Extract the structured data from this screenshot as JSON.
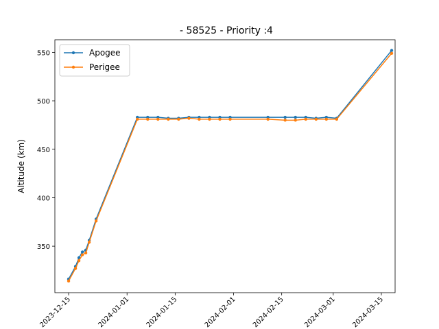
{
  "chart_data": {
    "type": "line",
    "title": "- 58525 - Priority :4",
    "xlabel": "",
    "ylabel": "Altitude (km)",
    "xlim": [
      "2023-12-11",
      "2024-03-19"
    ],
    "ylim": [
      302,
      563
    ],
    "x_ticks": [
      "2023-12-15",
      "2024-01-01",
      "2024-01-15",
      "2024-02-01",
      "2024-02-15",
      "2024-03-01",
      "2024-03-15"
    ],
    "y_ticks": [
      350,
      400,
      450,
      500,
      550
    ],
    "grid": false,
    "legend_position": "top-left",
    "series": [
      {
        "name": "Apogee",
        "color": "#1f77b4",
        "x": [
          "2023-12-15",
          "2023-12-17",
          "2023-12-18",
          "2023-12-19",
          "2023-12-20",
          "2023-12-21",
          "2023-12-23",
          "2024-01-04",
          "2024-01-07",
          "2024-01-10",
          "2024-01-13",
          "2024-01-16",
          "2024-01-19",
          "2024-01-22",
          "2024-01-25",
          "2024-01-28",
          "2024-01-31",
          "2024-02-11",
          "2024-02-16",
          "2024-02-19",
          "2024-02-22",
          "2024-02-25",
          "2024-02-28",
          "2024-03-02",
          "2024-03-18"
        ],
        "values": [
          316,
          329,
          338,
          344,
          346,
          356,
          378,
          483,
          483,
          483,
          482,
          482,
          483,
          483,
          483,
          483,
          483,
          483,
          483,
          483,
          483,
          482,
          483,
          482,
          552
        ]
      },
      {
        "name": "Perigee",
        "color": "#ff7f0e",
        "x": [
          "2023-12-15",
          "2023-12-17",
          "2023-12-18",
          "2023-12-19",
          "2023-12-20",
          "2023-12-21",
          "2023-12-23",
          "2024-01-04",
          "2024-01-07",
          "2024-01-10",
          "2024-01-13",
          "2024-01-16",
          "2024-01-19",
          "2024-01-22",
          "2024-01-25",
          "2024-01-28",
          "2024-01-31",
          "2024-02-11",
          "2024-02-16",
          "2024-02-19",
          "2024-02-22",
          "2024-02-25",
          "2024-02-28",
          "2024-03-02",
          "2024-03-18"
        ],
        "values": [
          314,
          327,
          335,
          341,
          343,
          354,
          376,
          481,
          481,
          481,
          481,
          481,
          482,
          481,
          481,
          481,
          481,
          481,
          480,
          480,
          481,
          481,
          481,
          481,
          549
        ]
      }
    ]
  }
}
